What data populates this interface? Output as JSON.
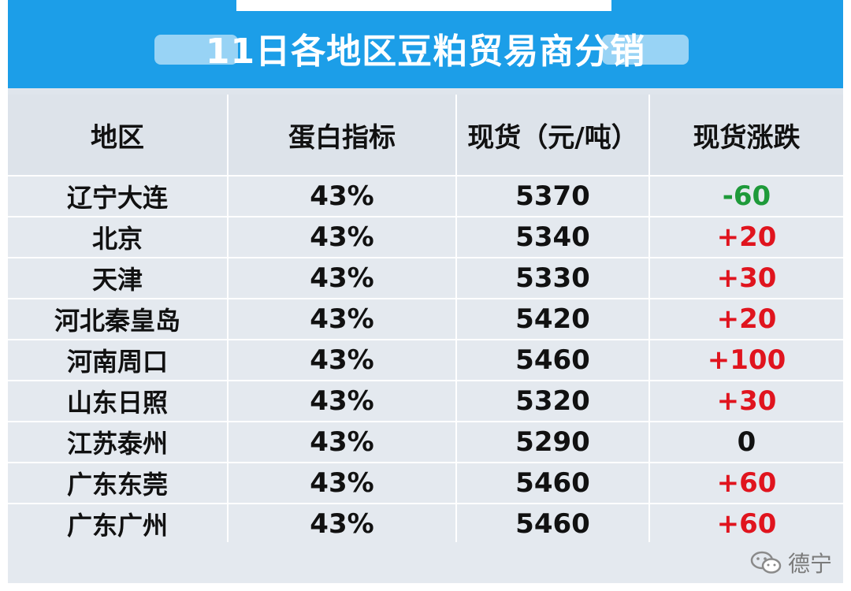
{
  "title": "11日各地区豆粕贸易商分销",
  "columns": [
    "地区",
    "蛋白指标",
    "现货（元/吨）",
    "现货涨跌"
  ],
  "rows": [
    {
      "region": "辽宁大连",
      "protein": "43%",
      "price": "5370",
      "change": "-60",
      "dir": "down"
    },
    {
      "region": "北京",
      "protein": "43%",
      "price": "5340",
      "change": "+20",
      "dir": "up"
    },
    {
      "region": "天津",
      "protein": "43%",
      "price": "5330",
      "change": "+30",
      "dir": "up"
    },
    {
      "region": "河北秦皇岛",
      "protein": "43%",
      "price": "5420",
      "change": "+20",
      "dir": "up"
    },
    {
      "region": "河南周口",
      "protein": "43%",
      "price": "5460",
      "change": "+100",
      "dir": "up"
    },
    {
      "region": "山东日照",
      "protein": "43%",
      "price": "5320",
      "change": "+30",
      "dir": "up"
    },
    {
      "region": "江苏泰州",
      "protein": "43%",
      "price": "5290",
      "change": "0",
      "dir": "flat"
    },
    {
      "region": "广东东莞",
      "protein": "43%",
      "price": "5460",
      "change": "+60",
      "dir": "up"
    },
    {
      "region": "广东广州",
      "protein": "43%",
      "price": "5460",
      "change": "+60",
      "dir": "up"
    }
  ],
  "watermark": "德宁",
  "watermark_icon": "wechat-icon",
  "colors": {
    "band": "#1c9ee8",
    "up": "#e0141e",
    "down": "#1e9a3a"
  }
}
